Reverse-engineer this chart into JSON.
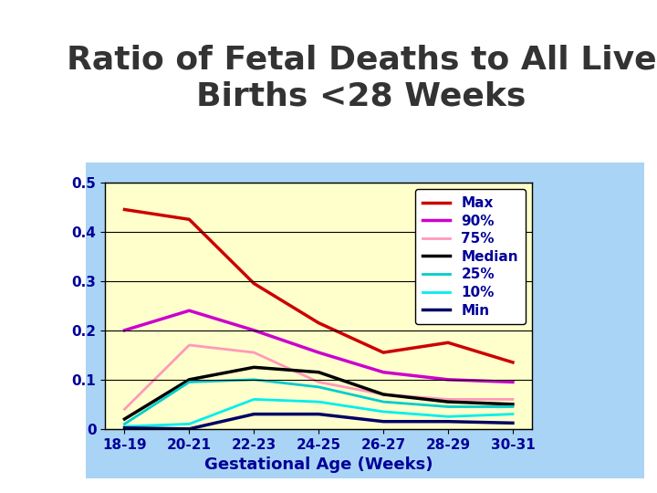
{
  "title": "Ratio of Fetal Deaths to All Live\nBirths <28 Weeks",
  "xlabel": "Gestational Age (Weeks)",
  "ylabel": "",
  "categories": [
    "18-19",
    "20-21",
    "22-23",
    "24-25",
    "26-27",
    "28-29",
    "30-31"
  ],
  "series": {
    "Max": [
      0.445,
      0.425,
      0.295,
      0.215,
      0.155,
      0.175,
      0.135
    ],
    "90%": [
      0.2,
      0.24,
      0.2,
      0.155,
      0.115,
      0.1,
      0.095
    ],
    "75%": [
      0.04,
      0.17,
      0.155,
      0.095,
      0.07,
      0.06,
      0.06
    ],
    "Median": [
      0.02,
      0.1,
      0.125,
      0.115,
      0.07,
      0.055,
      0.05
    ],
    "25%": [
      0.01,
      0.095,
      0.1,
      0.085,
      0.055,
      0.045,
      0.045
    ],
    "10%": [
      0.005,
      0.01,
      0.06,
      0.055,
      0.035,
      0.025,
      0.03
    ],
    "Min": [
      0.002,
      0.0,
      0.03,
      0.03,
      0.015,
      0.015,
      0.012
    ]
  },
  "colors": {
    "Max": "#cc0000",
    "90%": "#cc00cc",
    "75%": "#ff99bb",
    "Median": "#000000",
    "25%": "#00cccc",
    "10%": "#00eeee",
    "Min": "#000066"
  },
  "ylim": [
    0,
    0.5
  ],
  "yticks": [
    0,
    0.1,
    0.2,
    0.3,
    0.4,
    0.5
  ],
  "plot_bg": "#ffffcc",
  "outer_frame_bg": "#aad4f5",
  "figure_bg": "#ffffff",
  "title_fontsize": 26,
  "axis_label_fontsize": 13,
  "tick_fontsize": 11,
  "legend_fontsize": 11,
  "title_color": "#333333",
  "tick_color": "#000099",
  "xlabel_color": "#000099"
}
